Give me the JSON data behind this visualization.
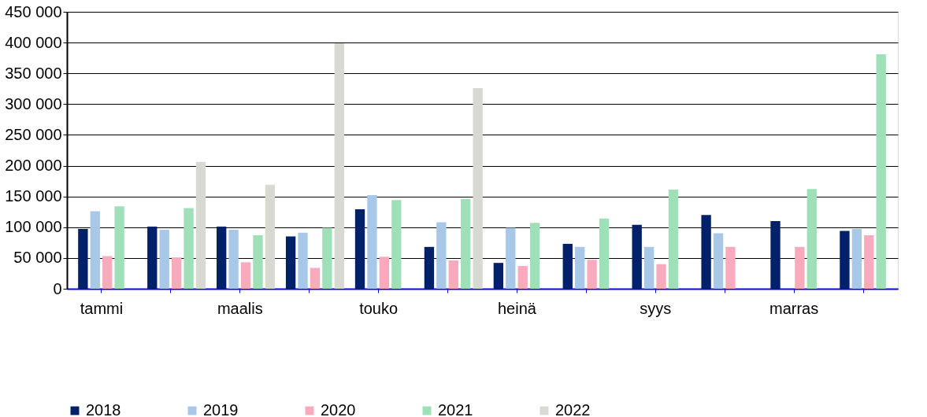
{
  "chart_data": {
    "type": "bar",
    "categories": [
      "tammi",
      null,
      "maalis",
      null,
      "touko",
      null,
      "heinä",
      null,
      "syys",
      null,
      "marras",
      null
    ],
    "series": [
      {
        "name": "2018",
        "color": "#00206a",
        "values": [
          97000,
          101000,
          101000,
          85000,
          129000,
          68000,
          42000,
          73000,
          104000,
          120000,
          110000,
          94000
        ]
      },
      {
        "name": "2019",
        "color": "#a9c8e8",
        "values": [
          126000,
          96000,
          96000,
          91000,
          152000,
          108000,
          99000,
          68000,
          68000,
          90000,
          null,
          97000
        ]
      },
      {
        "name": "2020",
        "color": "#f9abbd",
        "values": [
          53000,
          51000,
          43000,
          34000,
          52000,
          46000,
          37000,
          47000,
          40000,
          68000,
          68000,
          87000
        ]
      },
      {
        "name": "2021",
        "color": "#a0e0b8",
        "values": [
          134000,
          131000,
          87000,
          99000,
          144000,
          146000,
          107000,
          114000,
          161000,
          null,
          162000,
          381000
        ]
      },
      {
        "name": "2022",
        "color": "#d9d9d4",
        "values": [
          null,
          206000,
          169000,
          399000,
          null,
          326000,
          null,
          null,
          null,
          null,
          null,
          null
        ]
      }
    ],
    "ylim": [
      0,
      450000
    ],
    "yticks": [
      {
        "value": 0,
        "label": "0"
      },
      {
        "value": 50000,
        "label": "50 000"
      },
      {
        "value": 100000,
        "label": "100 000"
      },
      {
        "value": 150000,
        "label": "150 000"
      },
      {
        "value": 200000,
        "label": "200 000"
      },
      {
        "value": 250000,
        "label": "250 000"
      },
      {
        "value": 300000,
        "label": "300 000"
      },
      {
        "value": 350000,
        "label": "350 000"
      },
      {
        "value": 400000,
        "label": "400 000"
      },
      {
        "value": 450000,
        "label": "450 000"
      }
    ],
    "grid": "y",
    "legend": "bottom"
  }
}
